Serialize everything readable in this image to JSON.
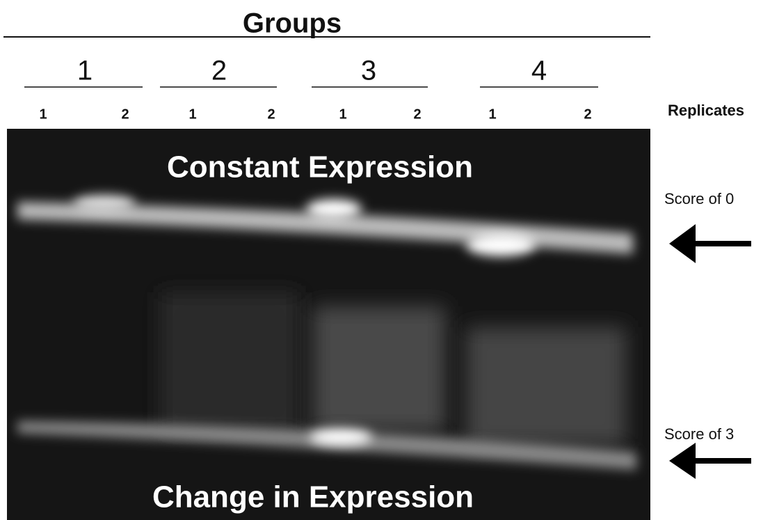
{
  "header": {
    "title": "Groups"
  },
  "groups": [
    {
      "label": "1",
      "replicates": [
        "1",
        "2"
      ]
    },
    {
      "label": "2",
      "replicates": [
        "1",
        "2"
      ]
    },
    {
      "label": "3",
      "replicates": [
        "1",
        "2"
      ]
    },
    {
      "label": "4",
      "replicates": [
        "1",
        "2"
      ]
    }
  ],
  "replicates_label": "Replicates",
  "gel": {
    "top_label": "Constant Expression",
    "bottom_label": "Change in Expression"
  },
  "scores": [
    {
      "label": "Score of 0"
    },
    {
      "label": "Score of 3"
    }
  ]
}
